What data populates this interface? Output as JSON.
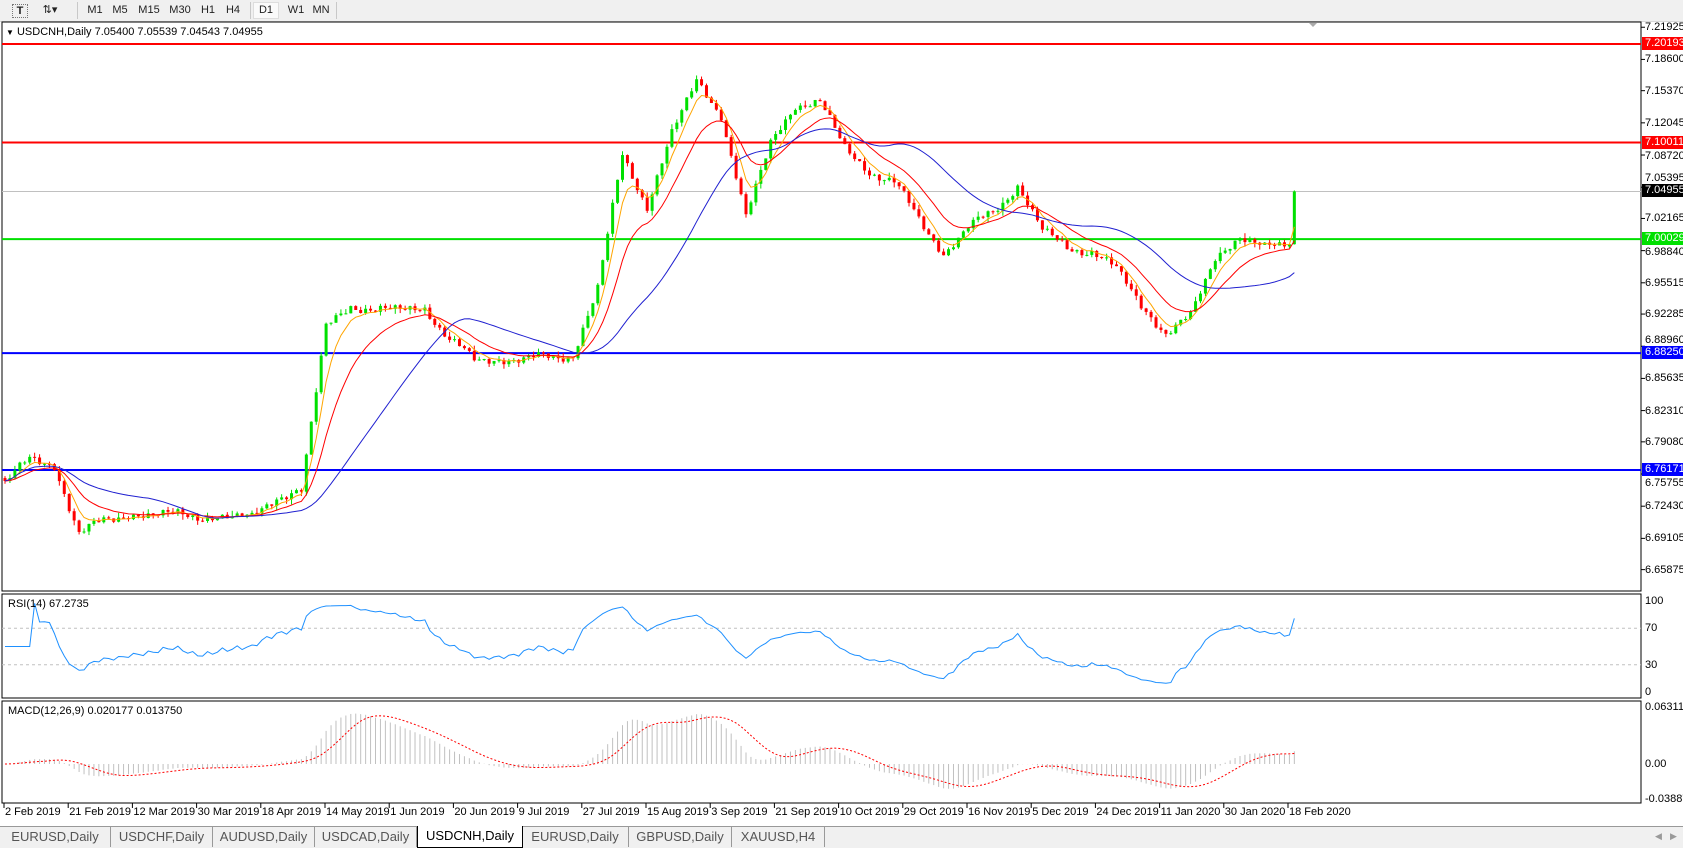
{
  "toolbar": {
    "icons": [
      "text-tool-icon",
      "chart-type-icon"
    ],
    "timeframes": [
      "M1",
      "M5",
      "M15",
      "M30",
      "H1",
      "H4",
      "D1",
      "W1",
      "MN"
    ],
    "active_timeframe": "D1"
  },
  "chart": {
    "legend": "USDCNH,Daily  7.05400 7.05539 7.04543 7.04955",
    "symbol": "USDCNH",
    "period": "Daily",
    "ohlc": {
      "open": 7.054,
      "high": 7.05539,
      "low": 7.04543,
      "close": 7.04955
    },
    "price_axis_labels": [
      "7.21925",
      "7.18600",
      "7.15370",
      "7.12045",
      "7.08720",
      "7.05395",
      "7.02165",
      "6.98840",
      "6.95515",
      "6.92285",
      "6.88960",
      "6.85635",
      "6.82310",
      "6.79080",
      "6.75755",
      "6.72430",
      "6.69105",
      "6.65875"
    ],
    "levels": [
      {
        "label": "7.20193",
        "price": 7.20193,
        "color": "#ff0000"
      },
      {
        "label": "7.10011",
        "price": 7.10011,
        "color": "#ff0000"
      },
      {
        "label": "7.00029",
        "price": 7.00029,
        "color": "#00e000"
      },
      {
        "label": "6.88250",
        "price": 6.8825,
        "color": "#0000ff"
      },
      {
        "label": "6.76171",
        "price": 6.76171,
        "color": "#0000ff"
      }
    ],
    "current_price": {
      "label": "7.04955",
      "price": 7.04955,
      "color": "#000000"
    },
    "colors": {
      "bull": "#00e000",
      "bear": "#ff0000",
      "ma_fast": "#ffa500",
      "ma_mid": "#ff0000",
      "ma_slow": "#2020d0",
      "rsi": "#1e90ff",
      "macd_hist": "#c0c0c0",
      "macd_signal": "#ff0000"
    },
    "date_labels": [
      "2 Feb 2019",
      "21 Feb 2019",
      "12 Mar 2019",
      "30 Mar 2019",
      "18 Apr 2019",
      "14 May 2019",
      "1 Jun 2019",
      "20 Jun 2019",
      "9 Jul 2019",
      "27 Jul 2019",
      "15 Aug 2019",
      "3 Sep 2019",
      "21 Sep 2019",
      "10 Oct 2019",
      "29 Oct 2019",
      "16 Nov 2019",
      "5 Dec 2019",
      "24 Dec 2019",
      "11 Jan 2020",
      "30 Jan 2020",
      "18 Feb 2020"
    ]
  },
  "rsi": {
    "title": "RSI(14) 67.2735",
    "value": 67.2735,
    "axis_labels": [
      "100",
      "70",
      "30",
      "0"
    ]
  },
  "macd": {
    "title": "MACD(12,26,9) 0.020177 0.013750",
    "main": 0.020177,
    "signal": 0.01375,
    "axis_labels": [
      "0.063113",
      "0.00",
      "-0.038872"
    ]
  },
  "chart_data": {
    "type": "candlestick",
    "description_of_values": "approximate weekly closes read from chart",
    "weekly_closes": [
      6.748,
      6.773,
      6.766,
      6.697,
      6.708,
      6.716,
      6.716,
      6.715,
      6.714,
      6.713,
      6.712,
      6.735,
      6.74,
      6.91,
      6.933,
      6.925,
      6.928,
      6.93,
      6.895,
      6.876,
      6.876,
      6.876,
      6.878,
      6.88,
      6.95,
      7.086,
      7.035,
      7.11,
      7.163,
      7.13,
      7.022,
      7.1,
      7.14,
      7.14,
      7.096,
      7.07,
      7.058,
      7.022,
      6.985,
      7.012,
      7.028,
      7.056,
      7.01,
      6.99,
      6.989,
      6.97,
      6.93,
      6.905,
      6.92,
      6.98,
      7.005,
      6.99,
      6.995
    ],
    "last_close": 7.04955
  },
  "tabs": [
    {
      "label": "EURUSD,Daily"
    },
    {
      "label": "USDCHF,Daily"
    },
    {
      "label": "AUDUSD,Daily"
    },
    {
      "label": "USDCAD,Daily"
    },
    {
      "label": "USDCNH,Daily",
      "active": true
    },
    {
      "label": "EURUSD,Daily"
    },
    {
      "label": "GBPUSD,Daily"
    },
    {
      "label": "XAUUSD,H4"
    }
  ]
}
